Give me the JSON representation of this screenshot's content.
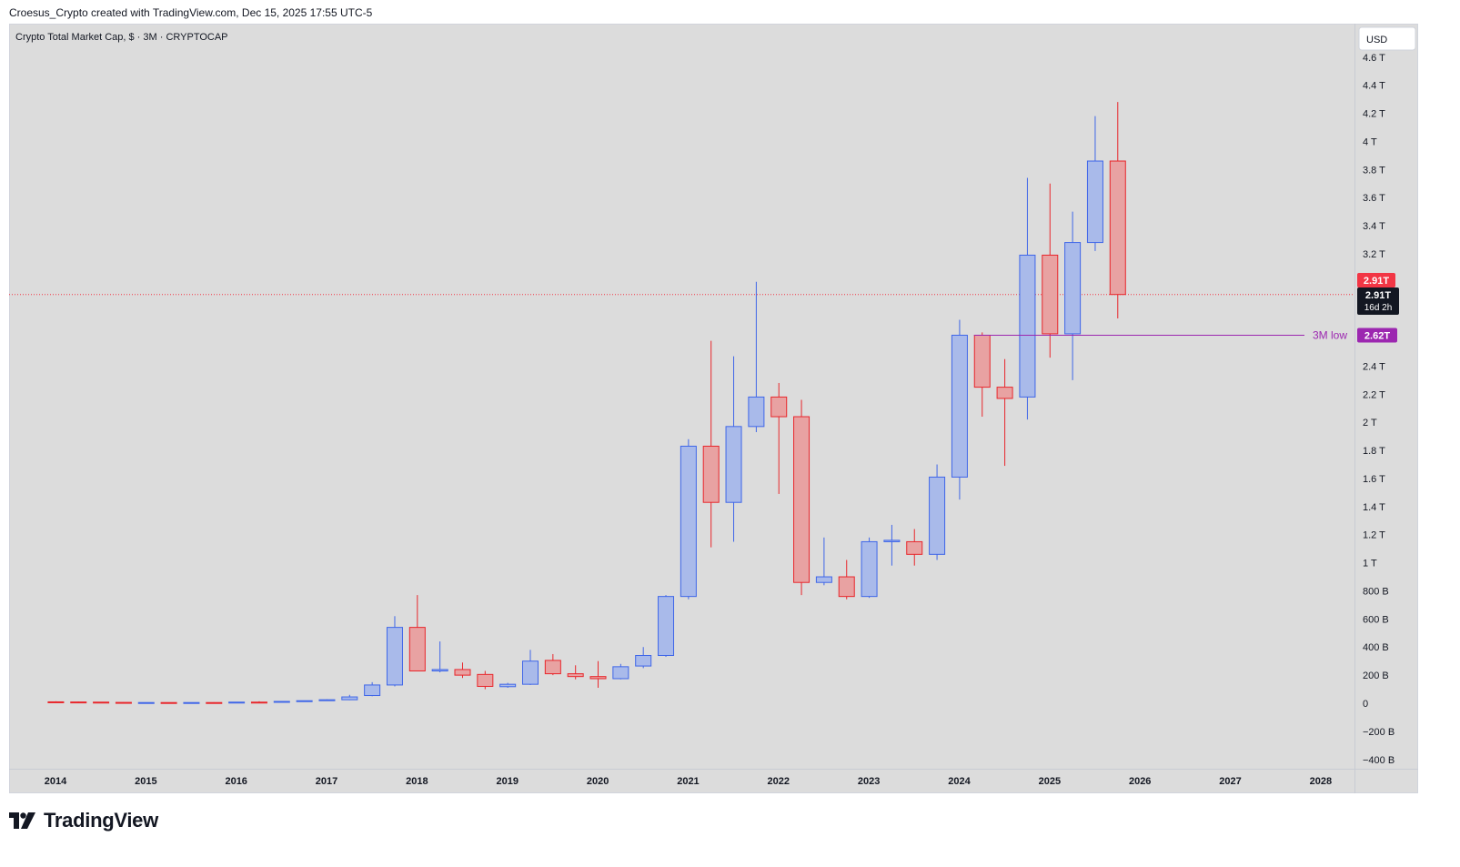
{
  "header": {
    "attribution": "Croesus_Crypto created with TradingView.com, Dec 15, 2025 17:55 UTC-5"
  },
  "brand": {
    "name": "TradingView"
  },
  "chart": {
    "symbol_title": "Crypto Total Market Cap, $ · 3M · CRYPTOCAP",
    "currency_button": "USD",
    "price_tag": "2.91T",
    "countdown_price": "2.91T",
    "countdown_time": "16d 2h",
    "low_label": "3M low",
    "low_value": "2.62T"
  },
  "colors": {
    "background": "#dcdcdc",
    "up_body": "#a9baea",
    "up_border": "#3f66e8",
    "down_body": "#e8a2a2",
    "down_border": "#e8262b",
    "low_line": "#9c27b0",
    "price_line": "#f23645"
  },
  "chart_data": {
    "type": "candlestick",
    "title": "Crypto Total Market Cap, $ · 3M · CRYPTOCAP",
    "timeframe": "3M",
    "y_unit": "USD",
    "ylim": [
      -440000000000,
      4640000000000
    ],
    "y_ticks": [
      {
        "label": "−400 B",
        "value": -400000000000
      },
      {
        "label": "−200 B",
        "value": -200000000000
      },
      {
        "label": "0",
        "value": 0
      },
      {
        "label": "200 B",
        "value": 200000000000
      },
      {
        "label": "400 B",
        "value": 400000000000
      },
      {
        "label": "600 B",
        "value": 600000000000
      },
      {
        "label": "800 B",
        "value": 800000000000
      },
      {
        "label": "1 T",
        "value": 1000000000000
      },
      {
        "label": "1.2 T",
        "value": 1200000000000
      },
      {
        "label": "1.4 T",
        "value": 1400000000000
      },
      {
        "label": "1.6 T",
        "value": 1600000000000
      },
      {
        "label": "1.8 T",
        "value": 1800000000000
      },
      {
        "label": "2 T",
        "value": 2000000000000
      },
      {
        "label": "2.2 T",
        "value": 2200000000000
      },
      {
        "label": "2.4 T",
        "value": 2400000000000
      },
      {
        "label": "3.2 T",
        "value": 3200000000000
      },
      {
        "label": "3.4 T",
        "value": 3400000000000
      },
      {
        "label": "3.6 T",
        "value": 3600000000000
      },
      {
        "label": "3.8 T",
        "value": 3800000000000
      },
      {
        "label": "4 T",
        "value": 4000000000000
      },
      {
        "label": "4.2 T",
        "value": 4200000000000
      },
      {
        "label": "4.4 T",
        "value": 4400000000000
      },
      {
        "label": "4.6 T",
        "value": 4600000000000
      }
    ],
    "x_ticks": [
      "2014",
      "2015",
      "2016",
      "2017",
      "2018",
      "2019",
      "2020",
      "2021",
      "2022",
      "2023",
      "2024",
      "2025",
      "2026",
      "2027",
      "2028"
    ],
    "x_range": [
      2013.65,
      2028.9
    ],
    "current_price": 2910000000000,
    "low_level": {
      "label": "3M low",
      "value": 2620000000000,
      "from": "2024-Q2"
    },
    "candles": [
      {
        "period": "2014-Q1",
        "open": 10000000000,
        "high": 14000000000,
        "low": 7000000000,
        "close": 9000000000
      },
      {
        "period": "2014-Q2",
        "open": 9000000000,
        "high": 12000000000,
        "low": 6000000000,
        "close": 8000000000
      },
      {
        "period": "2014-Q3",
        "open": 8000000000,
        "high": 9000000000,
        "low": 5000000000,
        "close": 6000000000
      },
      {
        "period": "2014-Q4",
        "open": 6000000000,
        "high": 7000000000,
        "low": 4000000000,
        "close": 5000000000
      },
      {
        "period": "2015-Q1",
        "open": 5000000000,
        "high": 6000000000,
        "low": 3000000000,
        "close": 5000000000
      },
      {
        "period": "2015-Q2",
        "open": 5000000000,
        "high": 6000000000,
        "low": 3000000000,
        "close": 4000000000
      },
      {
        "period": "2015-Q3",
        "open": 4000000000,
        "high": 6000000000,
        "low": 3000000000,
        "close": 5000000000
      },
      {
        "period": "2015-Q4",
        "open": 5000000000,
        "high": 7000000000,
        "low": 3000000000,
        "close": 4000000000
      },
      {
        "period": "2016-Q1",
        "open": 6000000000,
        "high": 9000000000,
        "low": 5000000000,
        "close": 8000000000
      },
      {
        "period": "2016-Q2",
        "open": 8000000000,
        "high": 14000000000,
        "low": 6000000000,
        "close": 7000000000
      },
      {
        "period": "2016-Q3",
        "open": 9000000000,
        "high": 15000000000,
        "low": 7000000000,
        "close": 13000000000
      },
      {
        "period": "2016-Q4",
        "open": 13000000000,
        "high": 19000000000,
        "low": 10000000000,
        "close": 18000000000
      },
      {
        "period": "2017-Q1",
        "open": 18000000000,
        "high": 28000000000,
        "low": 16000000000,
        "close": 25000000000
      },
      {
        "period": "2017-Q2",
        "open": 25000000000,
        "high": 60000000000,
        "low": 22000000000,
        "close": 45000000000
      },
      {
        "period": "2017-Q3",
        "open": 55000000000,
        "high": 150000000000,
        "low": 50000000000,
        "close": 130000000000
      },
      {
        "period": "2017-Q4",
        "open": 130000000000,
        "high": 620000000000,
        "low": 120000000000,
        "close": 540000000000
      },
      {
        "period": "2018-Q1",
        "open": 540000000000,
        "high": 770000000000,
        "low": 230000000000,
        "close": 230000000000
      },
      {
        "period": "2018-Q2",
        "open": 230000000000,
        "high": 440000000000,
        "low": 220000000000,
        "close": 240000000000
      },
      {
        "period": "2018-Q3",
        "open": 240000000000,
        "high": 290000000000,
        "low": 180000000000,
        "close": 200000000000
      },
      {
        "period": "2018-Q4",
        "open": 205000000000,
        "high": 230000000000,
        "low": 100000000000,
        "close": 120000000000
      },
      {
        "period": "2019-Q1",
        "open": 118000000000,
        "high": 145000000000,
        "low": 110000000000,
        "close": 135000000000
      },
      {
        "period": "2019-Q2",
        "open": 135000000000,
        "high": 380000000000,
        "low": 130000000000,
        "close": 300000000000
      },
      {
        "period": "2019-Q3",
        "open": 305000000000,
        "high": 350000000000,
        "low": 200000000000,
        "close": 210000000000
      },
      {
        "period": "2019-Q4",
        "open": 210000000000,
        "high": 270000000000,
        "low": 170000000000,
        "close": 190000000000
      },
      {
        "period": "2020-Q1",
        "open": 190000000000,
        "high": 300000000000,
        "low": 110000000000,
        "close": 175000000000
      },
      {
        "period": "2020-Q2",
        "open": 175000000000,
        "high": 280000000000,
        "low": 170000000000,
        "close": 260000000000
      },
      {
        "period": "2020-Q3",
        "open": 265000000000,
        "high": 400000000000,
        "low": 250000000000,
        "close": 340000000000
      },
      {
        "period": "2020-Q4",
        "open": 340000000000,
        "high": 770000000000,
        "low": 330000000000,
        "close": 760000000000
      },
      {
        "period": "2021-Q1",
        "open": 760000000000,
        "high": 1880000000000,
        "low": 740000000000,
        "close": 1830000000000
      },
      {
        "period": "2021-Q2",
        "open": 1830000000000,
        "high": 2580000000000,
        "low": 1110000000000,
        "close": 1430000000000
      },
      {
        "period": "2021-Q3",
        "open": 1430000000000,
        "high": 2470000000000,
        "low": 1150000000000,
        "close": 1970000000000
      },
      {
        "period": "2021-Q4",
        "open": 1970000000000,
        "high": 3000000000000,
        "low": 1930000000000,
        "close": 2180000000000
      },
      {
        "period": "2022-Q1",
        "open": 2180000000000,
        "high": 2280000000000,
        "low": 1490000000000,
        "close": 2040000000000
      },
      {
        "period": "2022-Q2",
        "open": 2040000000000,
        "high": 2160000000000,
        "low": 770000000000,
        "close": 860000000000
      },
      {
        "period": "2022-Q3",
        "open": 860000000000,
        "high": 1180000000000,
        "low": 840000000000,
        "close": 900000000000
      },
      {
        "period": "2022-Q4",
        "open": 900000000000,
        "high": 1020000000000,
        "low": 740000000000,
        "close": 760000000000
      },
      {
        "period": "2023-Q1",
        "open": 760000000000,
        "high": 1180000000000,
        "low": 750000000000,
        "close": 1150000000000
      },
      {
        "period": "2023-Q2",
        "open": 1150000000000,
        "high": 1270000000000,
        "low": 980000000000,
        "close": 1160000000000
      },
      {
        "period": "2023-Q3",
        "open": 1150000000000,
        "high": 1240000000000,
        "low": 980000000000,
        "close": 1060000000000
      },
      {
        "period": "2023-Q4",
        "open": 1060000000000,
        "high": 1700000000000,
        "low": 1020000000000,
        "close": 1610000000000
      },
      {
        "period": "2024-Q1",
        "open": 1610000000000,
        "high": 2730000000000,
        "low": 1450000000000,
        "close": 2620000000000
      },
      {
        "period": "2024-Q2",
        "open": 2620000000000,
        "high": 2640000000000,
        "low": 2040000000000,
        "close": 2250000000000
      },
      {
        "period": "2024-Q3",
        "open": 2250000000000,
        "high": 2450000000000,
        "low": 1690000000000,
        "close": 2170000000000
      },
      {
        "period": "2024-Q4",
        "open": 2180000000000,
        "high": 3740000000000,
        "low": 2020000000000,
        "close": 3190000000000
      },
      {
        "period": "2025-Q1",
        "open": 3190000000000,
        "high": 3700000000000,
        "low": 2460000000000,
        "close": 2630000000000
      },
      {
        "period": "2025-Q2",
        "open": 2630000000000,
        "high": 3500000000000,
        "low": 2300000000000,
        "close": 3280000000000
      },
      {
        "period": "2025-Q3",
        "open": 3280000000000,
        "high": 4180000000000,
        "low": 3220000000000,
        "close": 3860000000000
      },
      {
        "period": "2025-Q4",
        "open": 3860000000000,
        "high": 4280000000000,
        "low": 2740000000000,
        "close": 2910000000000
      }
    ]
  }
}
